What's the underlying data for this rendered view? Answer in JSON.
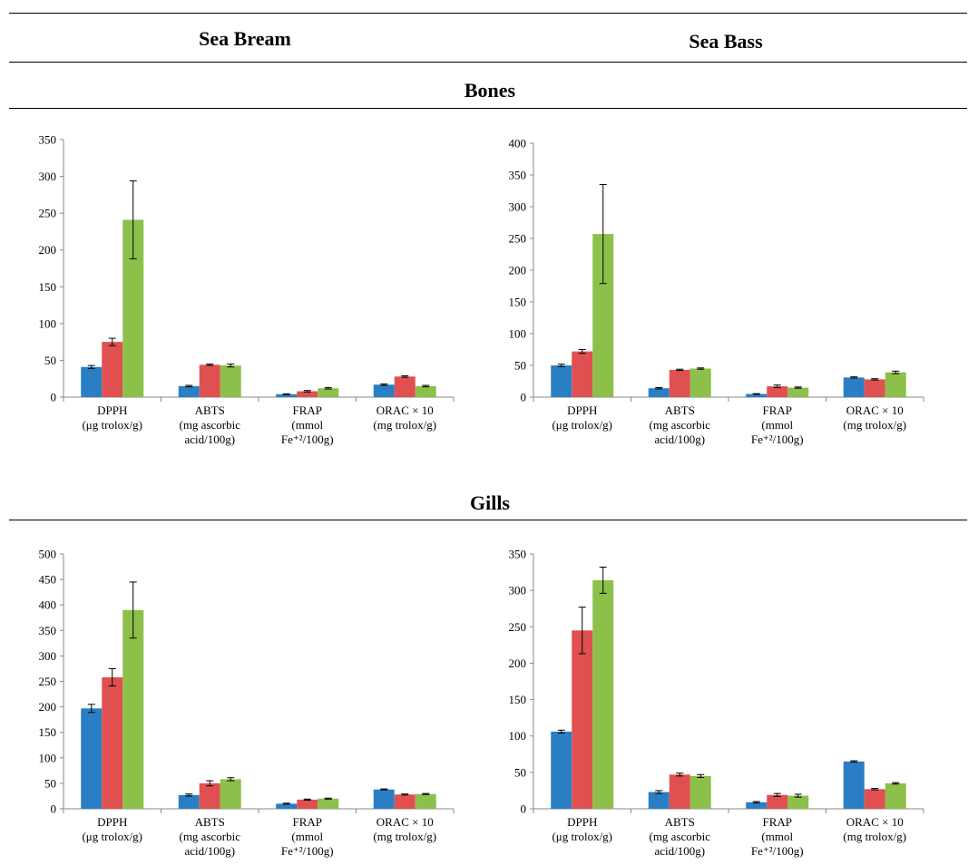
{
  "headers": {
    "sea_bream": "Sea Bream",
    "sea_bass": "Sea Bass",
    "bones": "Bones",
    "gills": "Gills"
  },
  "colors": {
    "series1": "#2a7fc4",
    "series2": "#e05050",
    "series3": "#8cc04a"
  },
  "chart_data": [
    {
      "type": "bar",
      "title": "",
      "categories": [
        [
          "DPPH",
          "(μg trolox/g)"
        ],
        [
          "ABTS",
          "(mg ascorbic",
          "acid/100g)"
        ],
        [
          "FRAP",
          "(mmol",
          "Fe⁺²/100g)"
        ],
        [
          "ORAC × 10",
          "(mg trolox/g)"
        ]
      ],
      "series": [
        {
          "values": [
            41,
            15,
            4,
            17
          ],
          "errors": [
            2,
            1,
            0.5,
            1
          ]
        },
        {
          "values": [
            75,
            44,
            8,
            28
          ],
          "errors": [
            5,
            1,
            1,
            1
          ]
        },
        {
          "values": [
            241,
            43,
            12,
            15
          ],
          "errors": [
            53,
            2,
            1,
            1
          ]
        }
      ],
      "ylim": [
        0,
        350
      ],
      "yticks": [
        0,
        50,
        100,
        150,
        200,
        250,
        300,
        350
      ]
    },
    {
      "type": "bar",
      "title": "",
      "categories": [
        [
          "DPPH",
          "(μg trolox/g)"
        ],
        [
          "ABTS",
          "(mg ascorbic",
          "acid/100g)"
        ],
        [
          "FRAP",
          "(mmol",
          "Fe⁺²/100g)"
        ],
        [
          "ORAC × 10",
          "(mg trolox/g)"
        ]
      ],
      "series": [
        {
          "values": [
            50,
            14,
            5,
            31
          ],
          "errors": [
            2,
            1,
            0.5,
            1
          ]
        },
        {
          "values": [
            72,
            43,
            17,
            28
          ],
          "errors": [
            3,
            1,
            2,
            1
          ]
        },
        {
          "values": [
            257,
            45,
            15,
            39
          ],
          "errors": [
            78,
            1,
            1,
            2
          ]
        }
      ],
      "ylim": [
        0,
        400
      ],
      "yticks": [
        0,
        50,
        100,
        150,
        200,
        250,
        300,
        350,
        400
      ]
    },
    {
      "type": "bar",
      "title": "",
      "categories": [
        [
          "DPPH",
          "(μg trolox/g)"
        ],
        [
          "ABTS",
          "(mg ascorbic",
          "acid/100g)"
        ],
        [
          "FRAP",
          "(mmol",
          "Fe⁺²/100g)"
        ],
        [
          "ORAC × 10",
          "(mg trolox/g)"
        ]
      ],
      "series": [
        {
          "values": [
            197,
            27,
            10,
            38
          ],
          "errors": [
            8,
            2,
            1,
            1
          ]
        },
        {
          "values": [
            258,
            50,
            18,
            28
          ],
          "errors": [
            17,
            5,
            1,
            1
          ]
        },
        {
          "values": [
            390,
            58,
            20,
            29
          ],
          "errors": [
            55,
            3,
            1,
            1
          ]
        }
      ],
      "ylim": [
        0,
        500
      ],
      "yticks": [
        0,
        50,
        100,
        150,
        200,
        250,
        300,
        350,
        400,
        450,
        500
      ]
    },
    {
      "type": "bar",
      "title": "",
      "categories": [
        [
          "DPPH",
          "(μg trolox/g)"
        ],
        [
          "ABTS",
          "(mg ascorbic",
          "acid/100g)"
        ],
        [
          "FRAP",
          "(mmol",
          "Fe⁺²/100g)"
        ],
        [
          "ORAC × 10",
          "(mg trolox/g)"
        ]
      ],
      "series": [
        {
          "values": [
            106,
            23,
            9,
            65
          ],
          "errors": [
            2,
            2,
            1,
            1
          ]
        },
        {
          "values": [
            245,
            47,
            19,
            27
          ],
          "errors": [
            32,
            2,
            2,
            1
          ]
        },
        {
          "values": [
            314,
            45,
            18,
            35
          ],
          "errors": [
            18,
            2,
            2,
            1
          ]
        }
      ],
      "ylim": [
        0,
        350
      ],
      "yticks": [
        0,
        50,
        100,
        150,
        200,
        250,
        300,
        350
      ]
    }
  ]
}
